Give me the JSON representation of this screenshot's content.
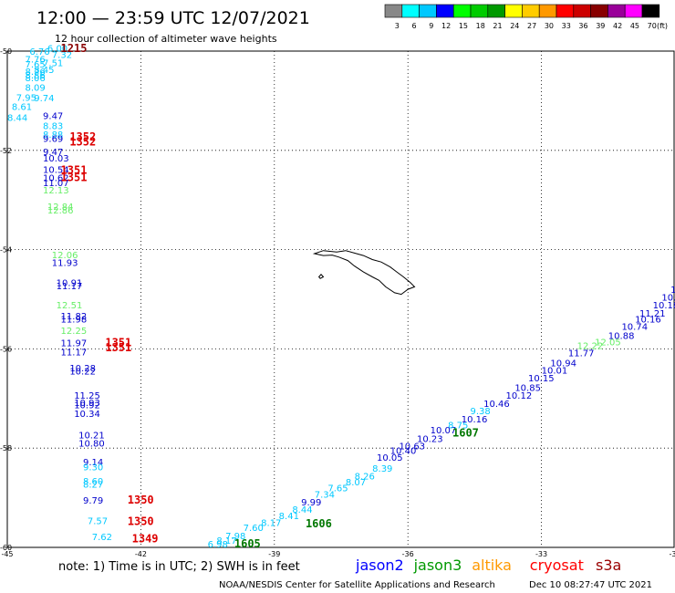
{
  "header": {
    "title": "12:00 — 23:59 UTC 12/07/2021",
    "subtitle": "12 hour collection of altimeter wave heights"
  },
  "legend": {
    "unit": "(ft)",
    "swatches": [
      {
        "label": "3",
        "color": "#888888"
      },
      {
        "label": "6",
        "color": "#00ffff"
      },
      {
        "label": "9",
        "color": "#00c8ff"
      },
      {
        "label": "12",
        "color": "#0000ff"
      },
      {
        "label": "15",
        "color": "#00ff00"
      },
      {
        "label": "18",
        "color": "#00cc00"
      },
      {
        "label": "21",
        "color": "#009900"
      },
      {
        "label": "24",
        "color": "#ffff00"
      },
      {
        "label": "27",
        "color": "#ffcc00"
      },
      {
        "label": "30",
        "color": "#ff9900"
      },
      {
        "label": "33",
        "color": "#ff0000"
      },
      {
        "label": "36",
        "color": "#cc0000"
      },
      {
        "label": "39",
        "color": "#880000"
      },
      {
        "label": "42",
        "color": "#990099"
      },
      {
        "label": "45",
        "color": "#ff00ff"
      },
      {
        "label": "70",
        "color": "#000000"
      }
    ]
  },
  "map": {
    "lon_range": [
      -45,
      -30
    ],
    "lat_range": [
      -60,
      -50
    ],
    "lon_ticks": [
      "-45",
      "-42",
      "-39",
      "-36",
      "-33",
      "-30"
    ],
    "lat_ticks": [
      "-50",
      "-52",
      "-54",
      "-56",
      "-58",
      "-60"
    ],
    "grid": "dotted"
  },
  "footer": {
    "note": "note: 1) Time is in UTC; 2) SWH is in feet",
    "satellites": [
      {
        "name": "jason2",
        "color": "#0000ff"
      },
      {
        "name": "jason3",
        "color": "#009900"
      },
      {
        "name": "altika",
        "color": "#ff9900"
      },
      {
        "name": "cryosat",
        "color": "#ff0000"
      },
      {
        "name": "s3a",
        "color": "#990000"
      }
    ],
    "credit": "NOAA/NESDIS Center for Satellite Applications and Research",
    "timestamp": "Dec 10 08:27:47 UTC 2021"
  },
  "track_labels": [
    {
      "t": "6.00",
      "lon": -44.1,
      "lat": -50.01,
      "c": "#00c8ff"
    },
    {
      "t": "6.76",
      "lon": -44.5,
      "lat": -50.07,
      "c": "#00c8ff"
    },
    {
      "t": "7.32",
      "lon": -44.0,
      "lat": -50.14,
      "c": "#00c8ff"
    },
    {
      "t": "7.76",
      "lon": -44.6,
      "lat": -50.23,
      "c": "#00c8ff"
    },
    {
      "t": "7.51",
      "lon": -44.2,
      "lat": -50.3,
      "c": "#00c8ff"
    },
    {
      "t": "7.65",
      "lon": -44.6,
      "lat": -50.33,
      "c": "#00c8ff"
    },
    {
      "t": "8.45",
      "lon": -44.4,
      "lat": -50.44,
      "c": "#00c8ff"
    },
    {
      "t": "8.76",
      "lon": -44.6,
      "lat": -50.48,
      "c": "#00c8ff"
    },
    {
      "t": "8.86",
      "lon": -44.6,
      "lat": -50.55,
      "c": "#00c8ff"
    },
    {
      "t": "8.06",
      "lon": -44.6,
      "lat": -50.61,
      "c": "#00c8ff"
    },
    {
      "t": "8.09",
      "lon": -44.6,
      "lat": -50.8,
      "c": "#00c8ff"
    },
    {
      "t": "7.95",
      "lon": -44.8,
      "lat": -51.0,
      "c": "#00c8ff"
    },
    {
      "t": "9.74",
      "lon": -44.4,
      "lat": -51.01,
      "c": "#00c8ff"
    },
    {
      "t": "8.61",
      "lon": -44.9,
      "lat": -51.19,
      "c": "#00c8ff"
    },
    {
      "t": "8.44",
      "lon": -45.0,
      "lat": -51.41,
      "c": "#00c8ff"
    },
    {
      "t": "9.47",
      "lon": -44.2,
      "lat": -51.37,
      "c": "#0000cc"
    },
    {
      "t": "8.83",
      "lon": -44.2,
      "lat": -51.57,
      "c": "#00c8ff"
    },
    {
      "t": "8.88",
      "lon": -44.2,
      "lat": -51.75,
      "c": "#00c8ff"
    },
    {
      "t": "9.69",
      "lon": -44.2,
      "lat": -51.83,
      "c": "#0000cc"
    },
    {
      "t": "9.47",
      "lon": -44.2,
      "lat": -52.1,
      "c": "#0000cc"
    },
    {
      "t": "10.03",
      "lon": -44.2,
      "lat": -52.22,
      "c": "#0000cc"
    },
    {
      "t": "10.54",
      "lon": -44.2,
      "lat": -52.45,
      "c": "#0000cc"
    },
    {
      "t": "10.62",
      "lon": -44.2,
      "lat": -52.62,
      "c": "#0000cc"
    },
    {
      "t": "11.07",
      "lon": -44.2,
      "lat": -52.72,
      "c": "#0000cc"
    },
    {
      "t": "12.13",
      "lon": -44.2,
      "lat": -52.87,
      "c": "#66ee66"
    },
    {
      "t": "12.84",
      "lon": -44.1,
      "lat": -53.2,
      "c": "#66ee66"
    },
    {
      "t": "12.86",
      "lon": -44.1,
      "lat": -53.27,
      "c": "#66ee66"
    },
    {
      "t": "12.06",
      "lon": -44.0,
      "lat": -54.17,
      "c": "#66ee66"
    },
    {
      "t": "11.93",
      "lon": -44.0,
      "lat": -54.33,
      "c": "#0000cc"
    },
    {
      "t": "10.91",
      "lon": -43.9,
      "lat": -54.73,
      "c": "#0000cc"
    },
    {
      "t": "11.17",
      "lon": -43.9,
      "lat": -54.8,
      "c": "#0000cc"
    },
    {
      "t": "12.51",
      "lon": -43.9,
      "lat": -55.18,
      "c": "#66ee66"
    },
    {
      "t": "11.82",
      "lon": -43.8,
      "lat": -55.4,
      "c": "#0000cc"
    },
    {
      "t": "11.98",
      "lon": -43.8,
      "lat": -55.47,
      "c": "#0000cc"
    },
    {
      "t": "12.25",
      "lon": -43.8,
      "lat": -55.7,
      "c": "#66ee66"
    },
    {
      "t": "11.97",
      "lon": -43.8,
      "lat": -55.95,
      "c": "#0000cc"
    },
    {
      "t": "11.17",
      "lon": -43.8,
      "lat": -56.13,
      "c": "#0000cc"
    },
    {
      "t": "10.28",
      "lon": -43.6,
      "lat": -56.45,
      "c": "#0000cc"
    },
    {
      "t": "10.22",
      "lon": -43.6,
      "lat": -56.52,
      "c": "#0000cc"
    },
    {
      "t": "11.25",
      "lon": -43.5,
      "lat": -57.0,
      "c": "#0000cc"
    },
    {
      "t": "10.93",
      "lon": -43.5,
      "lat": -57.15,
      "c": "#0000cc"
    },
    {
      "t": "10.92",
      "lon": -43.5,
      "lat": -57.2,
      "c": "#0000cc"
    },
    {
      "t": "10.34",
      "lon": -43.5,
      "lat": -57.37,
      "c": "#0000cc"
    },
    {
      "t": "10.21",
      "lon": -43.4,
      "lat": -57.8,
      "c": "#0000cc"
    },
    {
      "t": "10.80",
      "lon": -43.4,
      "lat": -57.97,
      "c": "#0000cc"
    },
    {
      "t": "9.14",
      "lon": -43.3,
      "lat": -58.35,
      "c": "#0000cc"
    },
    {
      "t": "9.30",
      "lon": -43.3,
      "lat": -58.45,
      "c": "#00c8ff"
    },
    {
      "t": "8.60",
      "lon": -43.3,
      "lat": -58.73,
      "c": "#00c8ff"
    },
    {
      "t": "8.27",
      "lon": -43.3,
      "lat": -58.8,
      "c": "#00c8ff"
    },
    {
      "t": "9.79",
      "lon": -43.3,
      "lat": -59.12,
      "c": "#0000cc"
    },
    {
      "t": "7.57",
      "lon": -43.2,
      "lat": -59.53,
      "c": "#00c8ff"
    },
    {
      "t": "7.62",
      "lon": -43.1,
      "lat": -59.85,
      "c": "#00c8ff"
    },
    {
      "t": "6.98",
      "lon": -40.5,
      "lat": -60.0,
      "c": "#00c8ff"
    },
    {
      "t": "8.17",
      "lon": -40.3,
      "lat": -59.93,
      "c": "#00c8ff"
    },
    {
      "t": "7.98",
      "lon": -40.1,
      "lat": -59.83,
      "c": "#00c8ff"
    },
    {
      "t": "7.60",
      "lon": -39.7,
      "lat": -59.67,
      "c": "#00c8ff"
    },
    {
      "t": "8.17",
      "lon": -39.3,
      "lat": -59.57,
      "c": "#00c8ff"
    },
    {
      "t": "8.41",
      "lon": -38.9,
      "lat": -59.43,
      "c": "#00c8ff"
    },
    {
      "t": "8.44",
      "lon": -38.6,
      "lat": -59.3,
      "c": "#00c8ff"
    },
    {
      "t": "9.99",
      "lon": -38.4,
      "lat": -59.15,
      "c": "#0000cc"
    },
    {
      "t": "7.34",
      "lon": -38.1,
      "lat": -59.0,
      "c": "#00c8ff"
    },
    {
      "t": "7.65",
      "lon": -37.8,
      "lat": -58.87,
      "c": "#00c8ff"
    },
    {
      "t": "8.07",
      "lon": -37.4,
      "lat": -58.75,
      "c": "#00c8ff"
    },
    {
      "t": "8.26",
      "lon": -37.2,
      "lat": -58.63,
      "c": "#00c8ff"
    },
    {
      "t": "8.39",
      "lon": -36.8,
      "lat": -58.47,
      "c": "#00c8ff"
    },
    {
      "t": "10.05",
      "lon": -36.7,
      "lat": -58.25,
      "c": "#0000cc"
    },
    {
      "t": "10.40",
      "lon": -36.4,
      "lat": -58.12,
      "c": "#0000cc"
    },
    {
      "t": "10.63",
      "lon": -36.2,
      "lat": -58.02,
      "c": "#0000cc"
    },
    {
      "t": "10.23",
      "lon": -35.8,
      "lat": -57.88,
      "c": "#0000cc"
    },
    {
      "t": "10.07",
      "lon": -35.5,
      "lat": -57.7,
      "c": "#0000cc"
    },
    {
      "t": "8.75",
      "lon": -35.1,
      "lat": -57.6,
      "c": "#00c8ff"
    },
    {
      "t": "10.16",
      "lon": -34.8,
      "lat": -57.48,
      "c": "#0000cc"
    },
    {
      "t": "9.38",
      "lon": -34.6,
      "lat": -57.32,
      "c": "#00c8ff"
    },
    {
      "t": "10.46",
      "lon": -34.3,
      "lat": -57.17,
      "c": "#0000cc"
    },
    {
      "t": "10.12",
      "lon": -33.8,
      "lat": -57.0,
      "c": "#0000cc"
    },
    {
      "t": "10.85",
      "lon": -33.6,
      "lat": -56.85,
      "c": "#0000cc"
    },
    {
      "t": "10.15",
      "lon": -33.3,
      "lat": -56.65,
      "c": "#0000cc"
    },
    {
      "t": "10.01",
      "lon": -33.0,
      "lat": -56.5,
      "c": "#0000cc"
    },
    {
      "t": "10.94",
      "lon": -32.8,
      "lat": -56.35,
      "c": "#0000cc"
    },
    {
      "t": "11.77",
      "lon": -32.4,
      "lat": -56.15,
      "c": "#0000cc"
    },
    {
      "t": "12.22",
      "lon": -32.2,
      "lat": -56.0,
      "c": "#66ee66"
    },
    {
      "t": "12.05",
      "lon": -31.8,
      "lat": -55.93,
      "c": "#66ee66"
    },
    {
      "t": "10.88",
      "lon": -31.5,
      "lat": -55.8,
      "c": "#0000cc"
    },
    {
      "t": "10.74",
      "lon": -31.2,
      "lat": -55.62,
      "c": "#0000cc"
    },
    {
      "t": "10.16",
      "lon": -30.9,
      "lat": -55.47,
      "c": "#0000cc"
    },
    {
      "t": "11.21",
      "lon": -30.8,
      "lat": -55.35,
      "c": "#0000cc"
    },
    {
      "t": "10.18",
      "lon": -30.5,
      "lat": -55.18,
      "c": "#0000cc"
    },
    {
      "t": "10.09",
      "lon": -30.3,
      "lat": -55.03,
      "c": "#0000cc"
    },
    {
      "t": "10.08",
      "lon": -30.1,
      "lat": -54.87,
      "c": "#0000cc"
    },
    {
      "t": "10.0",
      "lon": -30.0,
      "lat": -54.75,
      "c": "#0000cc"
    }
  ],
  "time_labels": [
    {
      "t": "1215",
      "lon": -43.8,
      "lat": -50.02,
      "c": "#880000"
    },
    {
      "t": "1352",
      "lon": -43.6,
      "lat": -51.8,
      "c": "#dd0000"
    },
    {
      "t": "1352",
      "lon": -43.6,
      "lat": -51.9,
      "c": "#dd0000"
    },
    {
      "t": "1351",
      "lon": -43.8,
      "lat": -52.47,
      "c": "#dd0000"
    },
    {
      "t": "1351",
      "lon": -43.8,
      "lat": -52.62,
      "c": "#dd0000"
    },
    {
      "t": "1351",
      "lon": -42.8,
      "lat": -55.95,
      "c": "#dd0000"
    },
    {
      "t": "1351",
      "lon": -42.8,
      "lat": -56.05,
      "c": "#dd0000"
    },
    {
      "t": "1350",
      "lon": -42.3,
      "lat": -59.12,
      "c": "#dd0000"
    },
    {
      "t": "1350",
      "lon": -42.3,
      "lat": -59.55,
      "c": "#dd0000"
    },
    {
      "t": "1349",
      "lon": -42.2,
      "lat": -59.9,
      "c": "#dd0000"
    },
    {
      "t": "1605",
      "lon": -39.9,
      "lat": -60.0,
      "c": "#007700"
    },
    {
      "t": "1606",
      "lon": -38.3,
      "lat": -59.6,
      "c": "#007700"
    },
    {
      "t": "1607",
      "lon": -35.0,
      "lat": -57.77,
      "c": "#007700"
    },
    {
      "t": "1607",
      "lon": -30.0,
      "lat": -55.6,
      "c": "#007700"
    }
  ],
  "island": {
    "name": "South Georgia",
    "outline": [
      [
        -38.1,
        -54.08
      ],
      [
        -37.9,
        -54.02
      ],
      [
        -37.6,
        -54.05
      ],
      [
        -37.4,
        -54.02
      ],
      [
        -37.2,
        -54.07
      ],
      [
        -37.0,
        -54.12
      ],
      [
        -36.8,
        -54.2
      ],
      [
        -36.6,
        -54.25
      ],
      [
        -36.4,
        -54.35
      ],
      [
        -36.25,
        -54.45
      ],
      [
        -36.1,
        -54.55
      ],
      [
        -35.95,
        -54.66
      ],
      [
        -35.85,
        -54.75
      ],
      [
        -36.0,
        -54.8
      ],
      [
        -36.15,
        -54.9
      ],
      [
        -36.3,
        -54.87
      ],
      [
        -36.5,
        -54.75
      ],
      [
        -36.65,
        -54.62
      ],
      [
        -36.8,
        -54.55
      ],
      [
        -37.0,
        -54.45
      ],
      [
        -37.2,
        -54.33
      ],
      [
        -37.35,
        -54.22
      ],
      [
        -37.55,
        -54.15
      ],
      [
        -37.7,
        -54.11
      ],
      [
        -37.9,
        -54.12
      ],
      [
        -38.1,
        -54.08
      ]
    ],
    "islet": [
      [
        -38.0,
        -54.55
      ],
      [
        -37.95,
        -54.5
      ],
      [
        -37.9,
        -54.55
      ],
      [
        -37.97,
        -54.58
      ],
      [
        -38.0,
        -54.55
      ]
    ]
  }
}
